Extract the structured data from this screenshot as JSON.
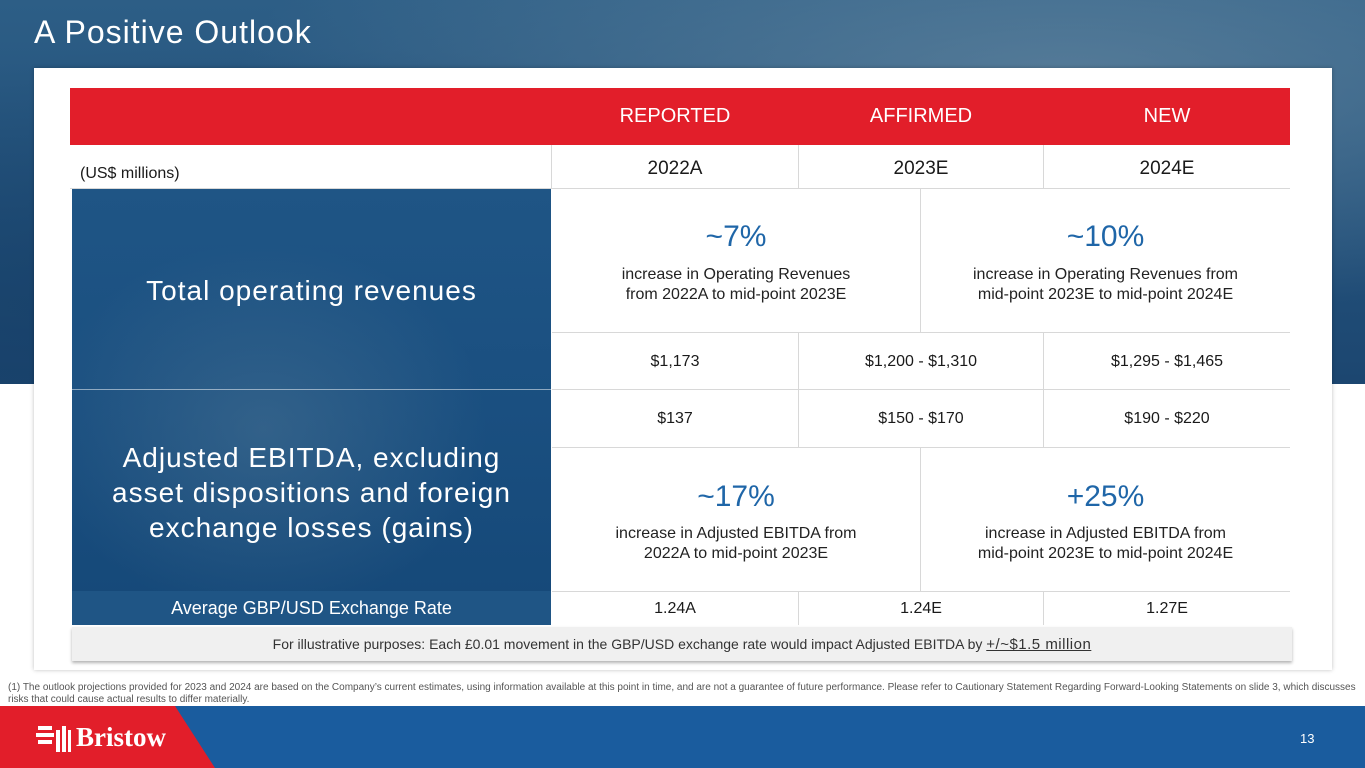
{
  "title": "A Positive Outlook",
  "header": {
    "empty": "",
    "col1": "REPORTED",
    "col2": "AFFIRMED",
    "col3": "NEW"
  },
  "units_row": {
    "label": "(US$ millions)",
    "y1": "2022A",
    "y2": "2023E",
    "y3": "2024E"
  },
  "revenues": {
    "label": "Total operating revenues",
    "pct1": "~7%",
    "desc1_line1": "increase in Operating Revenues",
    "desc1_line2": "from 2022A to mid-point 2023E",
    "pct2": "~10%",
    "desc2_line1": "increase in Operating Revenues from",
    "desc2_line2": "mid-point 2023E to mid-point 2024E",
    "v1": "$1,173",
    "v2": "$1,200 - $1,310",
    "v3": "$1,295 - $1,465"
  },
  "ebitda": {
    "label_line1": "Adjusted EBITDA, excluding",
    "label_line2": "asset dispositions and foreign",
    "label_line3": "exchange losses (gains)",
    "v1": "$137",
    "v2": "$150 - $170",
    "v3": "$190 - $220",
    "pct1": "~17%",
    "desc1_line1": "increase in Adjusted EBITDA from",
    "desc1_line2": "2022A to mid-point 2023E",
    "pct2": "+25%",
    "desc2_line1": "increase in Adjusted EBITDA from",
    "desc2_line2": "mid-point 2023E to mid-point 2024E"
  },
  "fx": {
    "label": "Average GBP/USD Exchange Rate",
    "v1": "1.24A",
    "v2": "1.24E",
    "v3": "1.27E"
  },
  "illustrative": {
    "prefix": "For illustrative purposes: ",
    "body": "Each £0.01 movement in the GBP/USD exchange rate would impact Adjusted EBITDA by ",
    "strong": "+/~$1.5 million"
  },
  "disclaimer": "(1) The outlook projections provided for 2023 and 2024 are based on the Company’s current estimates, using information available at this point in time, and are not a guarantee of future performance. Please refer to Cautionary Statement Regarding Forward-Looking Statements on slide 3, which discusses risks that could cause actual results to differ materially.",
  "brand": {
    "name": "Bristow",
    "red": "#e21e2a",
    "blue": "#1a5c9e",
    "accent": "#1f66a8"
  },
  "page_number": "13"
}
